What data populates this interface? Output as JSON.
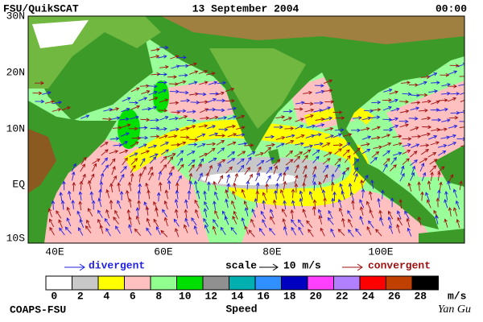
{
  "header": {
    "title": "FSU/QuikSCAT",
    "date": "13 September 2004",
    "time": "00:00"
  },
  "map": {
    "lat_labels": [
      "30N",
      "20N",
      "10N",
      "EQ",
      "10S"
    ],
    "lon_labels": [
      "40E",
      "60E",
      "80E",
      "100E"
    ]
  },
  "legend": {
    "divergent": "divergent",
    "scale": "scale",
    "scale_value": "10 m/s",
    "convergent": "convergent"
  },
  "colorbar": {
    "ticks": [
      0,
      2,
      4,
      6,
      8,
      10,
      12,
      14,
      16,
      18,
      20,
      22,
      24,
      26,
      28
    ],
    "colors": [
      "#ffffff",
      "#c8c8c8",
      "#ffff00",
      "#ffc0c0",
      "#90ff90",
      "#00e000",
      "#909090",
      "#00b0b0",
      "#3090ff",
      "#0000c0",
      "#ff40ff",
      "#b080ff",
      "#ff0000",
      "#c04000",
      "#000000"
    ],
    "unit": "m/s",
    "label": "Speed"
  },
  "footer": {
    "left": "COAPS-FSU",
    "right": "Yan Gu"
  }
}
